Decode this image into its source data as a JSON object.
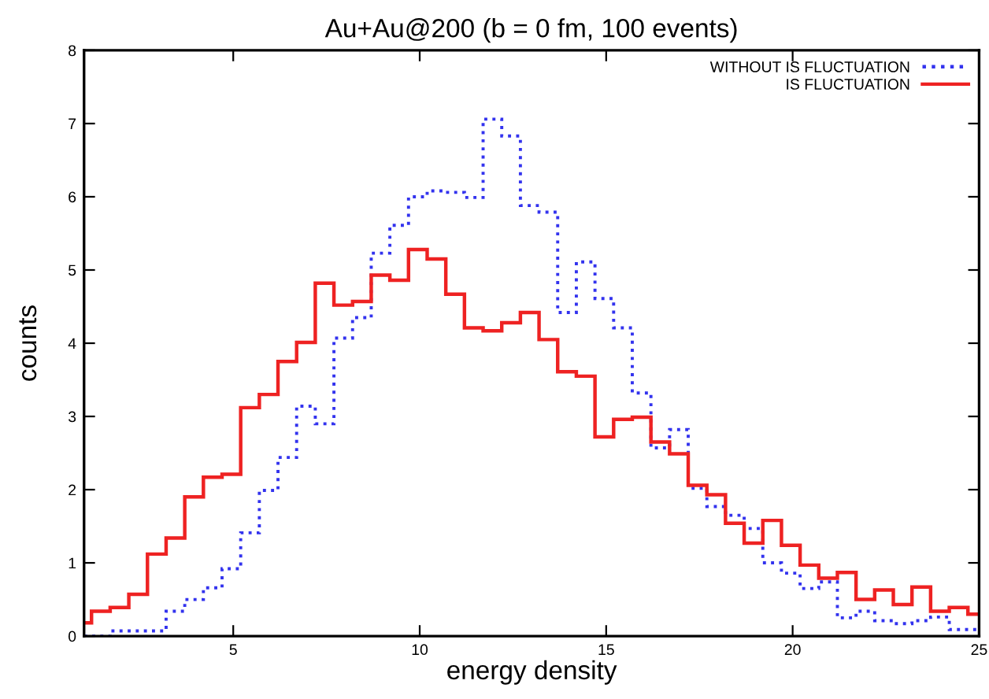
{
  "chart_data": {
    "type": "histogram",
    "title": "Au+Au@200 (b = 0 fm, 100 events)",
    "xlabel": "energy density",
    "ylabel": "counts",
    "bins": [
      1,
      1.2,
      1.7,
      2.2,
      2.7,
      3.2,
      3.7,
      4.2,
      4.7,
      5.2,
      5.7,
      6.2,
      6.7,
      7.2,
      7.7,
      8.2,
      8.7,
      9.2,
      9.7,
      10.2,
      10.7,
      11.2,
      11.7,
      12.2,
      12.7,
      13.2,
      13.7,
      14.2,
      14.7,
      15.2,
      15.7,
      16.2,
      16.7,
      17.2,
      17.7,
      18.2,
      18.7,
      19.2,
      19.7,
      20.2,
      20.7,
      21.2,
      21.7,
      22.2,
      22.7,
      23.2,
      23.7,
      24.2,
      24.7,
      25
    ],
    "series": [
      {
        "name": "WITHOUT IS FLUCTUATION",
        "color": "#3333ee",
        "line_style": "dotted",
        "values": [
          0,
          0,
          0.07,
          0.07,
          0.07,
          0.34,
          0.5,
          0.66,
          0.92,
          1.41,
          1.99,
          2.44,
          3.14,
          2.9,
          4.07,
          4.35,
          5.23,
          5.61,
          6.0,
          6.08,
          6.06,
          5.99,
          7.06,
          6.83,
          5.88,
          5.79,
          4.42,
          5.11,
          4.61,
          4.21,
          3.32,
          2.57,
          2.82,
          2.02,
          1.77,
          1.65,
          1.47,
          1.0,
          0.86,
          0.65,
          0.74,
          0.25,
          0.34,
          0.21,
          0.17,
          0.21,
          0.26,
          0.09,
          0.09
        ]
      },
      {
        "name": "IS FLUCTUATION",
        "color": "#ee2222",
        "line_style": "solid",
        "values": [
          0.18,
          0.34,
          0.39,
          0.57,
          1.12,
          1.34,
          1.9,
          2.17,
          2.21,
          3.12,
          3.3,
          3.75,
          4.01,
          4.82,
          4.52,
          4.57,
          4.93,
          4.86,
          5.28,
          5.15,
          4.67,
          4.21,
          4.17,
          4.28,
          4.42,
          4.05,
          3.61,
          3.55,
          2.72,
          2.96,
          2.99,
          2.65,
          2.49,
          2.06,
          1.93,
          1.54,
          1.27,
          1.58,
          1.24,
          0.97,
          0.79,
          0.87,
          0.5,
          0.63,
          0.43,
          0.67,
          0.34,
          0.39,
          0.3
        ]
      }
    ],
    "xlim": [
      1,
      25
    ],
    "xticks": [
      5,
      10,
      15,
      20,
      25
    ],
    "ylim": [
      0,
      8
    ],
    "yticks": [
      0,
      1,
      2,
      3,
      4,
      5,
      6,
      7,
      8
    ],
    "grid": false,
    "legend": "top right"
  }
}
